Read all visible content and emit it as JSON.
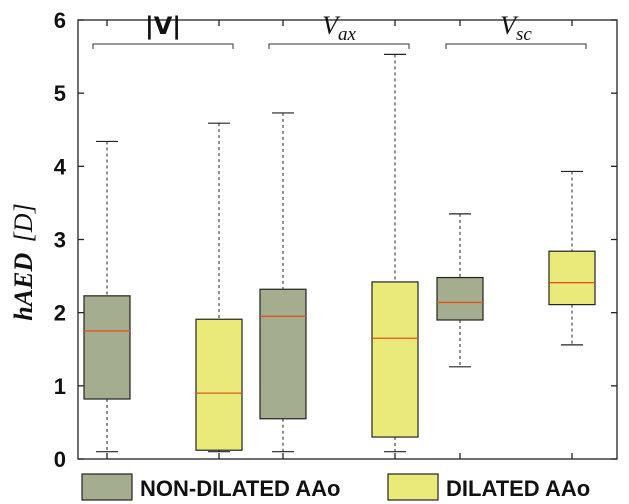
{
  "chart_data": {
    "type": "box",
    "y_axis": {
      "label_main": "hAED",
      "label_unit": "[D]",
      "ylim": [
        0,
        6
      ],
      "ticks": [
        0,
        1,
        2,
        3,
        4,
        5,
        6
      ]
    },
    "groups": [
      {
        "label_main": "|V|",
        "label_sub": ""
      },
      {
        "label_main": "V",
        "label_sub": "ax"
      },
      {
        "label_main": "V",
        "label_sub": "sc"
      }
    ],
    "series": [
      {
        "name": "NON-DILATED AAo",
        "color": "#a4ad8e"
      },
      {
        "name": "DILATED AAo",
        "color": "#eaea7a"
      }
    ],
    "boxes": [
      {
        "group": 0,
        "series": 0,
        "whisker_low": 0.1,
        "q1": 0.82,
        "median": 1.75,
        "q3": 2.23,
        "whisker_high": 4.34
      },
      {
        "group": 0,
        "series": 1,
        "whisker_low": 0.1,
        "q1": 0.12,
        "median": 0.9,
        "q3": 1.91,
        "whisker_high": 4.59
      },
      {
        "group": 1,
        "series": 0,
        "whisker_low": 0.1,
        "q1": 0.55,
        "median": 1.95,
        "q3": 2.32,
        "whisker_high": 4.73
      },
      {
        "group": 1,
        "series": 1,
        "whisker_low": 0.1,
        "q1": 0.3,
        "median": 1.65,
        "q3": 2.42,
        "whisker_high": 5.53
      },
      {
        "group": 2,
        "series": 0,
        "whisker_low": 1.26,
        "q1": 1.9,
        "median": 2.14,
        "q3": 2.48,
        "whisker_high": 3.35
      },
      {
        "group": 2,
        "series": 1,
        "whisker_low": 1.56,
        "q1": 2.11,
        "median": 2.41,
        "q3": 2.84,
        "whisker_high": 3.93
      }
    ],
    "legend_placement": "bottom",
    "median_color": "#e0531f",
    "grid": false
  }
}
